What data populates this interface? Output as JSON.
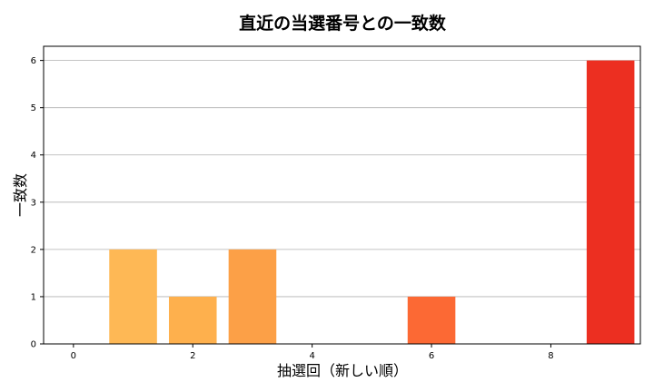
{
  "chart_data": {
    "type": "bar",
    "title": "直近の当選番号との一致数",
    "xlabel": "抽選回（新しい順）",
    "ylabel": "一致数",
    "x": [
      0,
      1,
      2,
      3,
      4,
      5,
      6,
      7,
      8,
      9
    ],
    "values": [
      0,
      2,
      1,
      2,
      0,
      0,
      1,
      0,
      0,
      6
    ],
    "bar_colors": [
      "#fedb7a",
      "#feb855",
      "#feb04d",
      "#fca047",
      "#fd8a3c",
      "#fc6d32",
      "#fc6934",
      "#f24a25",
      "#e83223",
      "#ec2f21"
    ],
    "xlim": [
      -0.5,
      9.5
    ],
    "ylim": [
      0,
      6.3
    ],
    "x_ticks": [
      0,
      2,
      4,
      6,
      8
    ],
    "y_ticks": [
      0,
      1,
      2,
      3,
      4,
      5,
      6
    ],
    "grid": "horizontal",
    "legend": "none"
  }
}
